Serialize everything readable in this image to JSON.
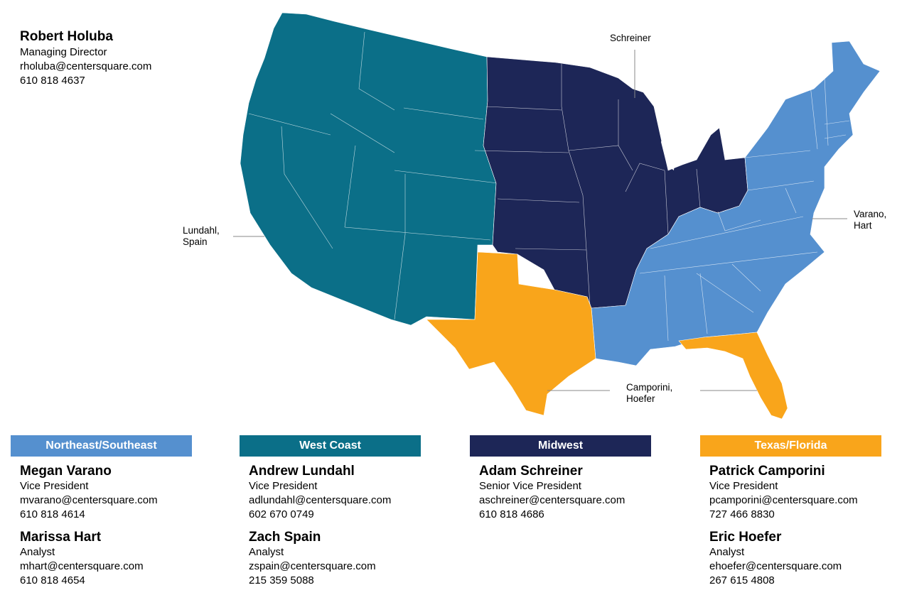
{
  "director": {
    "name": "Robert Holuba",
    "title": "Managing Director",
    "email": "rholuba@centersquare.com",
    "phone": "610 818 4637"
  },
  "colors": {
    "northeast_southeast": "#5590cf",
    "west_coast": "#0b6f88",
    "midwest": "#1d2657",
    "texas_florida": "#f9a51b"
  },
  "map": {
    "callouts": {
      "schreiner": "Schreiner",
      "lundahl_spain_1": "Lundahl,",
      "lundahl_spain_2": "Spain",
      "varano_hart_1": "Varano,",
      "varano_hart_2": "Hart",
      "camporini_hoefer_1": "Camporini,",
      "camporini_hoefer_2": "Hoefer"
    }
  },
  "regions": [
    {
      "name": "Northeast/Southeast",
      "contacts": [
        {
          "name": "Megan Varano",
          "title": "Vice President",
          "email": "mvarano@centersquare.com",
          "phone": "610 818 4614"
        },
        {
          "name": "Marissa Hart",
          "title": "Analyst",
          "email": "mhart@centersquare.com",
          "phone": "610 818 4654"
        }
      ]
    },
    {
      "name": "West Coast",
      "contacts": [
        {
          "name": "Andrew Lundahl",
          "title": "Vice President",
          "email": "adlundahl@centersquare.com",
          "phone": "602 670 0749"
        },
        {
          "name": "Zach Spain",
          "title": "Analyst",
          "email": "zspain@centersquare.com",
          "phone": "215 359 5088"
        }
      ]
    },
    {
      "name": "Midwest",
      "contacts": [
        {
          "name": "Adam Schreiner",
          "title": "Senior Vice President",
          "email": "aschreiner@centersquare.com",
          "phone": "610 818 4686"
        }
      ]
    },
    {
      "name": "Texas/Florida",
      "contacts": [
        {
          "name": "Patrick Camporini",
          "title": "Vice President",
          "email": "pcamporini@centersquare.com",
          "phone": "727 466 8830"
        },
        {
          "name": "Eric Hoefer",
          "title": "Analyst",
          "email": "ehoefer@centersquare.com",
          "phone": "267 615 4808"
        }
      ]
    }
  ]
}
